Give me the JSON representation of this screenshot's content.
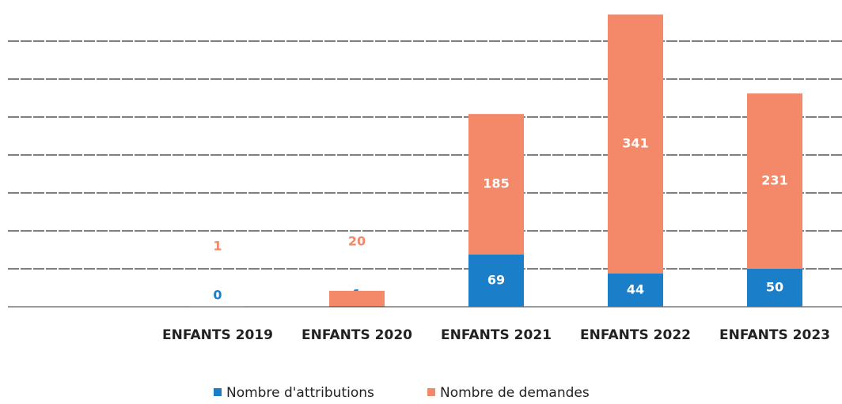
{
  "chart_data": {
    "type": "stacked_bar",
    "categories": [
      "ENFANTS 2019",
      "ENFANTS 2020",
      "ENFANTS 2021",
      "ENFANTS 2022",
      "ENFANTS 2023"
    ],
    "series": [
      {
        "name": "Nombre d'attributions",
        "color": "#1a7fc8",
        "values": [
          0,
          1,
          69,
          44,
          50
        ]
      },
      {
        "name": "Nombre de demandes",
        "color": "#f4896a",
        "values": [
          1,
          20,
          185,
          341,
          231
        ]
      }
    ],
    "ylim": [
      0,
      400
    ],
    "yticks": [
      0,
      50,
      100,
      150,
      200,
      250,
      300,
      350
    ],
    "grid": true,
    "legend": "bottom"
  }
}
